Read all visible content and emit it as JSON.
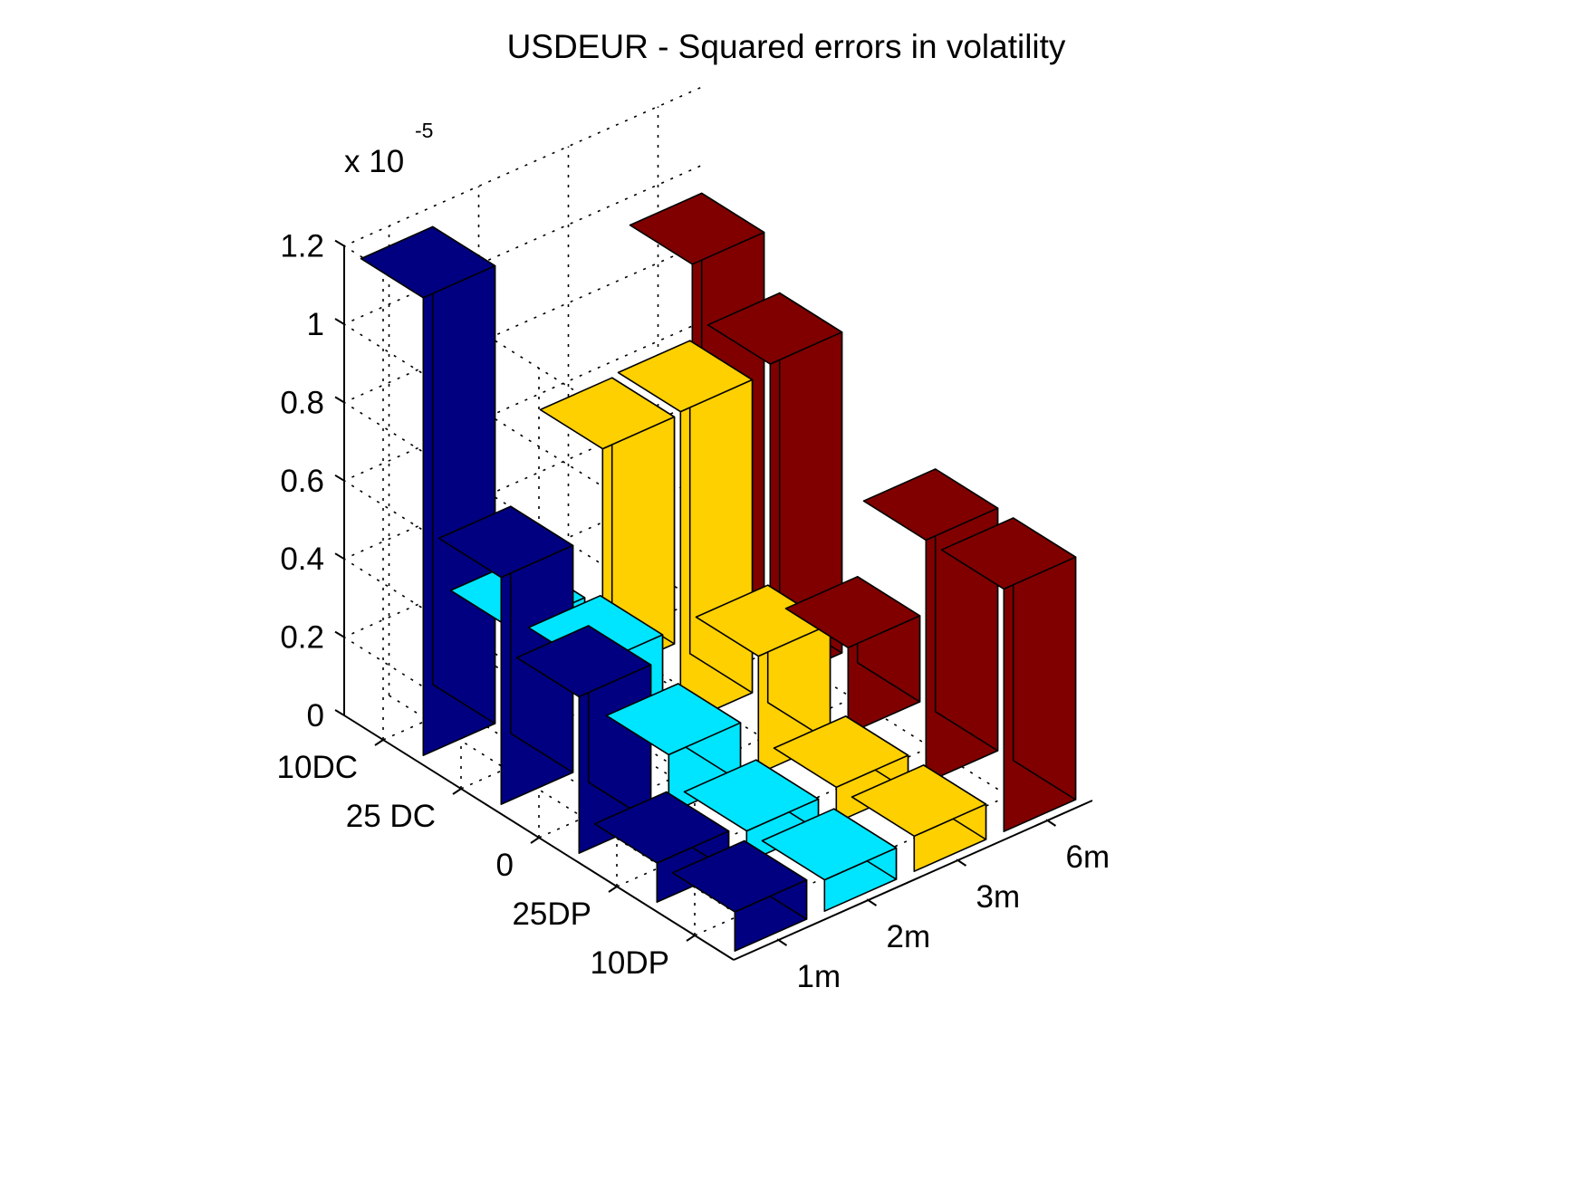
{
  "chart_data": {
    "type": "bar3d",
    "title": "USDEUR - Squared errors in volatility",
    "rows": [
      "10DC",
      "25 DC",
      "0",
      "25DP",
      "10DP"
    ],
    "columns": [
      "1m",
      "2m",
      "3m",
      "6m"
    ],
    "z_multiplier": "x 10",
    "z_exponent": "-5",
    "z_ticks": [
      "0",
      "0.2",
      "0.4",
      "0.6",
      "0.8",
      "1",
      "1.2"
    ],
    "z_tick_values": [
      0,
      0.2,
      0.4,
      0.6,
      0.8,
      1.0,
      1.2
    ],
    "zlim": [
      0,
      1.2
    ],
    "grid": true,
    "series": [
      {
        "name": "",
        "color": "#000080",
        "values": [
          1.17,
          0.58,
          0.4,
          0.1,
          0.1
        ]
      },
      {
        "name": "",
        "color": "#00E5FF",
        "values": [
          0.22,
          0.25,
          0.15,
          0.08,
          0.08
        ]
      },
      {
        "name": "",
        "color": "#FFD000",
        "values": [
          0.58,
          0.8,
          0.3,
          0.09,
          0.09
        ]
      },
      {
        "name": "",
        "color": "#800000",
        "values": [
          0.95,
          0.82,
          0.22,
          0.62,
          0.62
        ]
      }
    ]
  }
}
